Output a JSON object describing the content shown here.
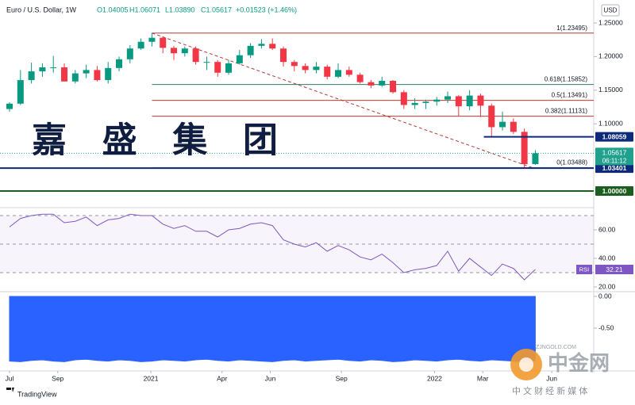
{
  "chart_data": [
    {
      "type": "candlestick",
      "title": "Euro / U.S. Dollar, 1W",
      "header": [
        "O1.04005",
        "H1.06071",
        "L1.03890",
        "C1.05617",
        "+0.01523 (+1.46%)"
      ],
      "currency": "USD",
      "x": [
        0,
        1,
        2,
        3,
        4,
        5,
        6,
        7,
        8,
        9,
        10,
        11,
        12,
        13,
        14,
        15,
        16,
        17,
        18,
        19,
        20,
        21,
        22,
        23,
        24,
        25,
        26,
        27,
        28,
        29,
        30,
        31,
        32,
        33,
        34,
        35,
        36,
        37,
        38,
        39,
        40,
        41,
        42,
        43,
        44,
        45,
        46,
        47,
        48
      ],
      "open": [
        1.122,
        1.13,
        1.165,
        1.178,
        1.184,
        1.184,
        1.163,
        1.175,
        1.18,
        1.165,
        1.183,
        1.196,
        1.212,
        1.222,
        1.228,
        1.213,
        1.205,
        1.212,
        1.192,
        1.192,
        1.176,
        1.19,
        1.202,
        1.216,
        1.219,
        1.212,
        1.192,
        1.186,
        1.18,
        1.185,
        1.17,
        1.18,
        1.173,
        1.162,
        1.157,
        1.164,
        1.147,
        1.128,
        1.131,
        1.133,
        1.136,
        1.141,
        1.126,
        1.142,
        1.127,
        1.095,
        1.103,
        1.088,
        1.04005
      ],
      "high": [
        1.132,
        1.18,
        1.191,
        1.19,
        1.201,
        1.19,
        1.18,
        1.188,
        1.186,
        1.192,
        1.2,
        1.217,
        1.227,
        1.235,
        1.23,
        1.216,
        1.215,
        1.215,
        1.2,
        1.195,
        1.195,
        1.21,
        1.22,
        1.226,
        1.227,
        1.215,
        1.195,
        1.19,
        1.192,
        1.188,
        1.19,
        1.185,
        1.176,
        1.165,
        1.17,
        1.165,
        1.15,
        1.138,
        1.136,
        1.14,
        1.148,
        1.143,
        1.15,
        1.145,
        1.13,
        1.118,
        1.108,
        1.093,
        1.06071
      ],
      "low": [
        1.118,
        1.128,
        1.16,
        1.17,
        1.176,
        1.164,
        1.16,
        1.168,
        1.163,
        1.16,
        1.178,
        1.19,
        1.21,
        1.215,
        1.205,
        1.195,
        1.2,
        1.188,
        1.18,
        1.17,
        1.173,
        1.188,
        1.198,
        1.212,
        1.21,
        1.185,
        1.178,
        1.175,
        1.175,
        1.166,
        1.168,
        1.17,
        1.16,
        1.153,
        1.155,
        1.145,
        1.122,
        1.122,
        1.122,
        1.127,
        1.131,
        1.112,
        1.12,
        1.11,
        1.081,
        1.09,
        1.085,
        1.035,
        1.0389
      ],
      "close": [
        1.13,
        1.165,
        1.178,
        1.184,
        1.184,
        1.163,
        1.175,
        1.18,
        1.165,
        1.183,
        1.196,
        1.212,
        1.222,
        1.228,
        1.213,
        1.205,
        1.212,
        1.192,
        1.192,
        1.176,
        1.19,
        1.202,
        1.216,
        1.219,
        1.212,
        1.192,
        1.186,
        1.18,
        1.185,
        1.17,
        1.18,
        1.173,
        1.162,
        1.157,
        1.164,
        1.147,
        1.128,
        1.131,
        1.133,
        1.136,
        1.141,
        1.126,
        1.142,
        1.127,
        1.095,
        1.103,
        1.088,
        1.04005,
        1.05617
      ],
      "up_color": "#089981",
      "down_color": "#f23645",
      "countdown": "06:11:12",
      "last_color": "#22a08e",
      "xlim": [
        -0.87,
        53.33
      ],
      "xticks": [
        {
          "value": 0,
          "label": "Jul"
        },
        {
          "value": 4.4,
          "label": "Sep"
        },
        {
          "value": 12.9,
          "label": "2021"
        },
        {
          "value": 19.4,
          "label": "Apr"
        },
        {
          "value": 23.8,
          "label": "Jun"
        },
        {
          "value": 30.3,
          "label": "Sep"
        },
        {
          "value": 38.8,
          "label": "2022"
        },
        {
          "value": 43.2,
          "label": "Mar"
        },
        {
          "value": 49.5,
          "label": "Jun"
        }
      ],
      "ylim": [
        0.97524,
        1.2842
      ],
      "yticks": [
        {
          "value": 1.25,
          "label": "1.25000"
        },
        {
          "value": 1.2,
          "label": "1.20000"
        },
        {
          "value": 1.15,
          "label": "1.15000"
        },
        {
          "value": 1.1,
          "label": "1.10000"
        }
      ],
      "fib_start_x": 13,
      "fib_levels": [
        {
          "value": 1.23495,
          "label": "1(1.23495)",
          "color": "#b23a3a"
        },
        {
          "value": 1.15852,
          "label": "0.618(1.15852)",
          "color": "#2e7d5b"
        },
        {
          "value": 1.13491,
          "label": "0.5(1.13491)",
          "color": "#c0392b"
        },
        {
          "value": 1.11131,
          "label": "0.382(1.11131)",
          "color": "#c0392b"
        },
        {
          "value": 1.03488,
          "label": "0(1.03488)",
          "color": "#9e9e9e"
        }
      ],
      "trend_line": {
        "x": [
          13,
          47.7
        ],
        "y": [
          1.235,
          1.0349
        ],
        "color": "#b23a3a"
      },
      "levels": [
        {
          "value": 1.08059,
          "label": "1.08059",
          "color": "#0d2a7a",
          "start_x": 43.3
        },
        {
          "value": 1.03401,
          "label": "1.03401",
          "color": "#0d2a7a",
          "start_x": -0.87
        },
        {
          "value": 1.0,
          "label": "1.00000",
          "color": "#1b5e20",
          "start_x": -0.87
        }
      ]
    },
    {
      "type": "line",
      "name": "RSI",
      "color": "#7e57c2",
      "values": [
        62,
        68,
        70,
        71,
        71,
        65,
        66,
        69,
        63,
        67,
        68,
        71,
        70,
        70,
        64,
        61,
        63,
        59,
        59,
        55,
        60,
        61,
        64,
        65,
        63,
        53,
        50,
        48,
        51,
        45,
        49,
        46,
        41,
        39,
        43,
        37,
        30,
        32,
        33,
        35,
        45,
        31,
        40,
        34,
        28,
        36,
        33,
        25,
        32.21
      ],
      "bands": [
        70,
        50,
        30
      ],
      "ylim": [
        16.67,
        75.56
      ],
      "yticks": [
        {
          "value": 60,
          "label": "60.00"
        },
        {
          "value": 40,
          "label": "40.00"
        },
        {
          "value": 20,
          "label": "20.00"
        }
      ]
    },
    {
      "type": "area",
      "color": "#2962ff",
      "values": [
        -1.02,
        -1.03,
        -1.01,
        -1.0,
        -1.02,
        -1.03,
        -1.0,
        -0.99,
        -1.01,
        -1.02,
        -1.0,
        -1.01,
        -1.03,
        -1.02,
        -1.0,
        -1.01,
        -1.02,
        -1.0,
        -0.99,
        -1.01,
        -1.02,
        -1.0,
        -1.01,
        -1.02,
        -1.03,
        -1.01,
        -1.0,
        -1.02,
        -1.01,
        -1.0,
        -0.99,
        -1.01,
        -1.02,
        -1.0,
        -1.01,
        -1.03,
        -1.02,
        -1.0,
        -1.01,
        -1.02,
        -1.0,
        -0.99,
        -1.01,
        -1.02,
        -1.0,
        -1.01,
        -1.02,
        -1.03,
        -1.01
      ],
      "ylim": [
        -1.1,
        0.075
      ],
      "yticks": [
        {
          "value": 0,
          "label": "0.00"
        },
        {
          "value": -0.5,
          "label": "-0.50"
        }
      ]
    }
  ],
  "watermark": "嘉 盛 集 团",
  "footer": {
    "brand": "TradingView",
    "logo": "中金网",
    "site": "ZJNGOLD.COM",
    "tagline": "中 文 财 经 新 媒 体"
  }
}
